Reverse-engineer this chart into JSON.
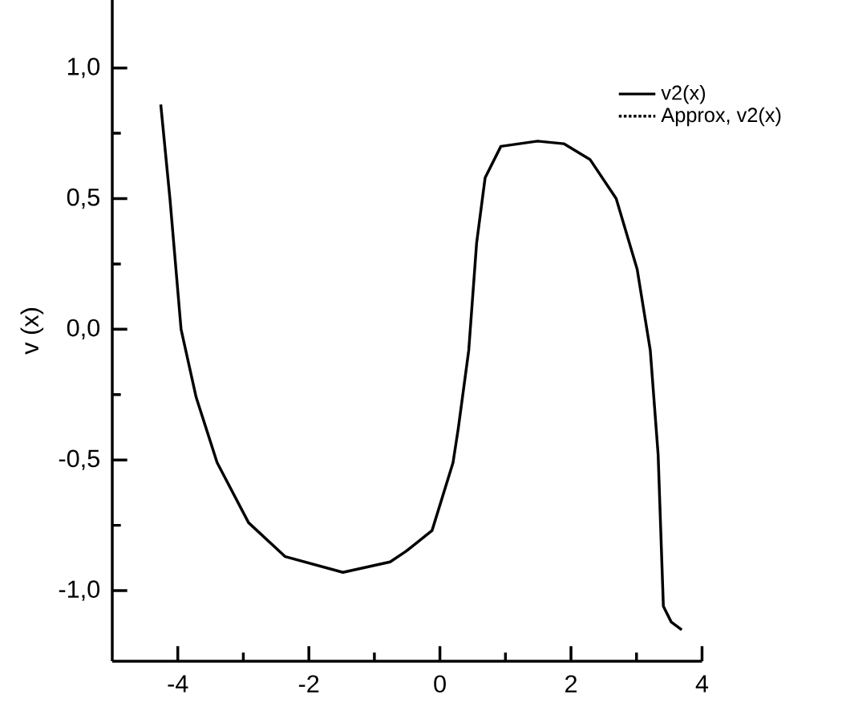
{
  "chart_data": {
    "type": "line",
    "ylabel": "v (x)",
    "x": [
      -4.26,
      -4.12,
      -3.95,
      -3.72,
      -3.4,
      -2.92,
      -2.36,
      -1.48,
      -0.76,
      -0.52,
      -0.12,
      0.2,
      0.28,
      0.44,
      0.56,
      0.69,
      0.93,
      1.49,
      1.89,
      2.29,
      2.69,
      3.01,
      3.21,
      3.33,
      3.41,
      3.53,
      3.69
    ],
    "series": [
      {
        "name": "v2(x)",
        "color": "#000000",
        "line_style": "solid",
        "values": [
          0.86,
          0.5,
          0.0,
          -0.26,
          -0.51,
          -0.74,
          -0.87,
          -0.93,
          -0.89,
          -0.85,
          -0.77,
          -0.51,
          -0.38,
          -0.08,
          0.33,
          0.58,
          0.7,
          0.72,
          0.71,
          0.65,
          0.5,
          0.23,
          -0.08,
          -0.48,
          -1.06,
          -1.12,
          -1.15
        ]
      },
      {
        "name": "Approx, v2(x)",
        "color": "#000000",
        "line_style": "dotted",
        "values": [
          null,
          null,
          null,
          null,
          null,
          null,
          null,
          null,
          null,
          null,
          null,
          null,
          null,
          null,
          null,
          null,
          null,
          null,
          null,
          null,
          null,
          null,
          null,
          null,
          null,
          null,
          null
        ]
      }
    ],
    "xlim": [
      -5,
      4
    ],
    "ylim": [
      -1.27,
      1.26
    ],
    "xticks": [
      -4,
      {
        "value": -3,
        "label": null
      },
      -2,
      {
        "value": -1,
        "label": null
      },
      0,
      {
        "value": 1,
        "label": null
      },
      2,
      {
        "value": 3,
        "label": null
      },
      4
    ],
    "yticks": [
      {
        "value": -1.0,
        "label": "-1,0"
      },
      {
        "value": -0.75,
        "label": null
      },
      {
        "value": -0.5,
        "label": "-0,5"
      },
      {
        "value": -0.25,
        "label": null
      },
      {
        "value": 0.0,
        "label": "0,0"
      },
      {
        "value": 0.25,
        "label": null
      },
      {
        "value": 0.5,
        "label": "0,5"
      },
      {
        "value": 0.75,
        "label": null
      },
      {
        "value": 1.0,
        "label": "1,0"
      }
    ],
    "grid": false,
    "legend": "top right",
    "marker": "none"
  }
}
